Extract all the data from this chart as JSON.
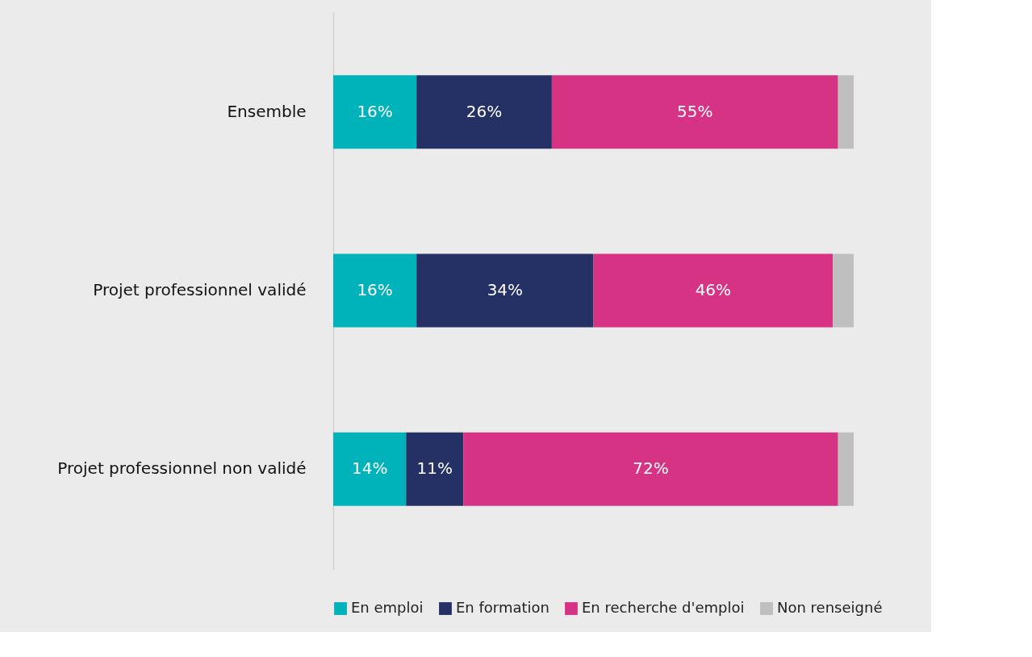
{
  "chart_data": {
    "type": "bar",
    "orientation": "horizontal",
    "stacked": true,
    "categories": [
      "Ensemble",
      "Projet professionnel validé",
      "Projet professionnel non validé"
    ],
    "series": [
      {
        "name": "En emploi",
        "color": "#00b2b9",
        "values": [
          16,
          16,
          14
        ],
        "value_labels": [
          "16%",
          "16%",
          "14%"
        ]
      },
      {
        "name": "En formation",
        "color": "#253064",
        "values": [
          26,
          34,
          11
        ],
        "value_labels": [
          "26%",
          "34%",
          "11%"
        ]
      },
      {
        "name": "En recherche d'emploi",
        "color": "#d63384",
        "values": [
          55,
          46,
          72
        ],
        "value_labels": [
          "55%",
          "46%",
          "72%"
        ]
      },
      {
        "name": "Non renseigné",
        "color": "#bfbfbf",
        "values": [
          3,
          4,
          3
        ],
        "value_labels": [
          null,
          null,
          null
        ]
      }
    ],
    "xlim": [
      0,
      100
    ],
    "tick_labels": "y",
    "legend": "bottom"
  }
}
